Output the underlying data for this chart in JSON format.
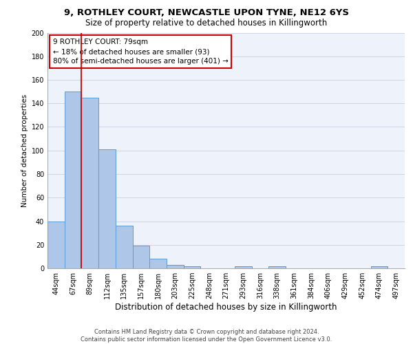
{
  "title_line1": "9, ROTHLEY COURT, NEWCASTLE UPON TYNE, NE12 6YS",
  "title_line2": "Size of property relative to detached houses in Killingworth",
  "xlabel": "Distribution of detached houses by size in Killingworth",
  "ylabel": "Number of detached properties",
  "bins": [
    "44sqm",
    "67sqm",
    "89sqm",
    "112sqm",
    "135sqm",
    "157sqm",
    "180sqm",
    "203sqm",
    "225sqm",
    "248sqm",
    "271sqm",
    "293sqm",
    "316sqm",
    "338sqm",
    "361sqm",
    "384sqm",
    "406sqm",
    "429sqm",
    "452sqm",
    "474sqm",
    "497sqm"
  ],
  "values": [
    40,
    150,
    145,
    101,
    36,
    19,
    8,
    3,
    2,
    0,
    0,
    2,
    0,
    2,
    0,
    0,
    0,
    0,
    0,
    2,
    0
  ],
  "bar_color": "#aec6e8",
  "bar_edge_color": "#5b9bd5",
  "vline_x": 1.5,
  "vline_color": "#cc0000",
  "annotation_text": "9 ROTHLEY COURT: 79sqm\n← 18% of detached houses are smaller (93)\n80% of semi-detached houses are larger (401) →",
  "annotation_box_color": "#ffffff",
  "annotation_box_edge": "#cc0000",
  "footer_text": "Contains HM Land Registry data © Crown copyright and database right 2024.\nContains public sector information licensed under the Open Government Licence v3.0.",
  "ylim": [
    0,
    200
  ],
  "yticks": [
    0,
    20,
    40,
    60,
    80,
    100,
    120,
    140,
    160,
    180,
    200
  ],
  "plot_bg_color": "#eef2fb",
  "title1_fontsize": 9.5,
  "title2_fontsize": 8.5,
  "ylabel_fontsize": 7.5,
  "xlabel_fontsize": 8.5,
  "tick_fontsize": 7,
  "ann_fontsize": 7.5,
  "footer_fontsize": 6
}
